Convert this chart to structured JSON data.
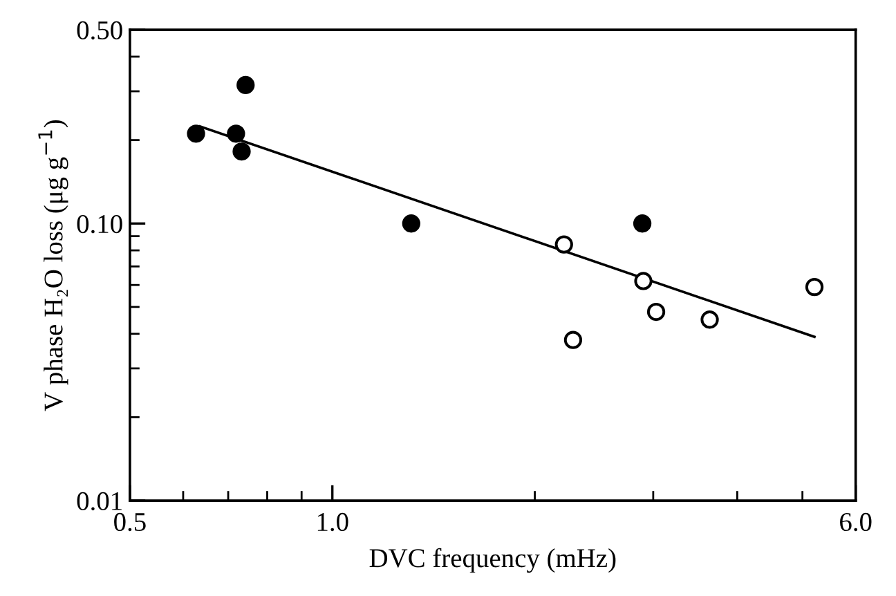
{
  "chart_data": {
    "type": "scatter",
    "xlabel": "DVC frequency (mHz)",
    "ylabel": "V phase H₂O loss (μg g$^{−1}$)",
    "log": "xy",
    "xlim": [
      0.5,
      6.0
    ],
    "ylim": [
      0.01,
      0.5
    ],
    "xticks": [
      {
        "value": 0.5,
        "label": "0.5"
      },
      {
        "value": 1.0,
        "label": "1.0"
      },
      {
        "value": 6.0,
        "label": "6.0"
      }
    ],
    "yticks": [
      {
        "value": 0.01,
        "label": "0.01"
      },
      {
        "value": 0.1,
        "label": "0.10"
      },
      {
        "value": 0.5,
        "label": "0.50"
      }
    ],
    "grid": false,
    "legend": false,
    "series": [
      {
        "color": "#000000",
        "marker": "circle",
        "x": [
          0.627,
          0.719,
          0.733,
          0.743,
          1.31,
          2.89
        ],
        "values": [
          0.211,
          0.211,
          0.182,
          0.316,
          0.1,
          0.1
        ]
      },
      {
        "color": "#ffffff",
        "marker": "circle",
        "x": [
          2.21,
          2.28,
          2.9,
          3.03,
          3.64,
          5.21
        ],
        "values": [
          0.084,
          0.038,
          0.062,
          0.048,
          0.045,
          0.059
        ]
      },
      {
        "type": "line",
        "color": "#000000",
        "line_style": "solid",
        "x": [
          0.636,
          5.21
        ],
        "values": [
          0.224,
          0.039
        ]
      }
    ]
  }
}
